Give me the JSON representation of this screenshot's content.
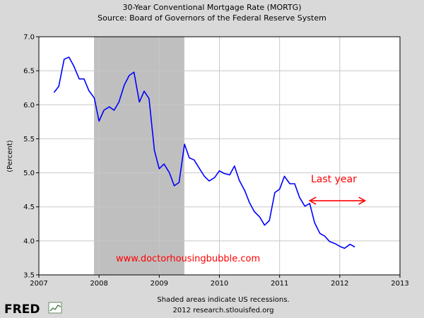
{
  "header": {
    "title": "30-Year Conventional Mortgage Rate (MORTG)",
    "source": "Source: Board of Governors of the Federal Reserve System"
  },
  "footer": {
    "note": "Shaded areas indicate US recessions.",
    "credit": "2012 research.stlouisfed.org"
  },
  "logo": {
    "text": "FRED",
    "icon": "chart-line-icon"
  },
  "watermark": "www.doctorhousingbubble.com",
  "annotation": {
    "text": "Last year",
    "icon": "double-arrow-icon"
  },
  "colors": {
    "line": "#0000ff",
    "recession": "#bfbfbf",
    "annotation": "#ff0000",
    "background": "#d9d9d9",
    "plot_bg": "#ffffff",
    "grid": "#c8c8c8"
  },
  "chart_data": {
    "type": "line",
    "title": "30-Year Conventional Mortgage Rate (MORTG)",
    "subtitle": "Source: Board of Governors of the Federal Reserve System",
    "xlabel": "",
    "ylabel": "(Percent)",
    "xlim": [
      2007,
      2013
    ],
    "ylim": [
      3.5,
      7.0
    ],
    "x_ticks": [
      "2007",
      "2008",
      "2009",
      "2010",
      "2011",
      "2012",
      "2013"
    ],
    "y_ticks": [
      "3.5",
      "4.0",
      "4.5",
      "5.0",
      "5.5",
      "6.0",
      "6.5",
      "7.0"
    ],
    "grid": true,
    "recession": {
      "start": 2007.917,
      "end": 2009.417
    },
    "annotation_span": {
      "start": 2011.5,
      "end": 2012.42,
      "y": 4.59
    },
    "series": [
      {
        "x": [
          2007.25,
          2007.33,
          2007.42,
          2007.5,
          2007.58,
          2007.67,
          2007.75,
          2007.83,
          2007.92,
          2008.0,
          2008.08,
          2008.17,
          2008.25,
          2008.33,
          2008.42,
          2008.5,
          2008.58,
          2008.67,
          2008.75,
          2008.83,
          2008.92,
          2009.0,
          2009.08,
          2009.17,
          2009.25,
          2009.33,
          2009.42,
          2009.5,
          2009.58,
          2009.67,
          2009.75,
          2009.83,
          2009.92,
          2010.0,
          2010.08,
          2010.17,
          2010.25,
          2010.33,
          2010.42,
          2010.5,
          2010.58,
          2010.67,
          2010.75,
          2010.83,
          2010.92,
          2011.0,
          2011.08,
          2011.17,
          2011.25,
          2011.33,
          2011.42,
          2011.5,
          2011.58,
          2011.67,
          2011.75,
          2011.83,
          2011.92,
          2012.0,
          2012.08,
          2012.17,
          2012.25
        ],
        "y": [
          6.18,
          6.27,
          6.67,
          6.7,
          6.57,
          6.38,
          6.38,
          6.21,
          6.1,
          5.76,
          5.92,
          5.97,
          5.92,
          6.04,
          6.29,
          6.43,
          6.48,
          6.04,
          6.2,
          6.09,
          5.33,
          5.06,
          5.13,
          5.0,
          4.81,
          4.86,
          5.42,
          5.22,
          5.19,
          5.06,
          4.95,
          4.88,
          4.93,
          5.03,
          4.99,
          4.97,
          5.1,
          4.89,
          4.74,
          4.56,
          4.43,
          4.35,
          4.23,
          4.3,
          4.71,
          4.76,
          4.95,
          4.84,
          4.84,
          4.64,
          4.51,
          4.55,
          4.27,
          4.11,
          4.07,
          3.99,
          3.96,
          3.92,
          3.89,
          3.95,
          3.91
        ]
      }
    ]
  }
}
